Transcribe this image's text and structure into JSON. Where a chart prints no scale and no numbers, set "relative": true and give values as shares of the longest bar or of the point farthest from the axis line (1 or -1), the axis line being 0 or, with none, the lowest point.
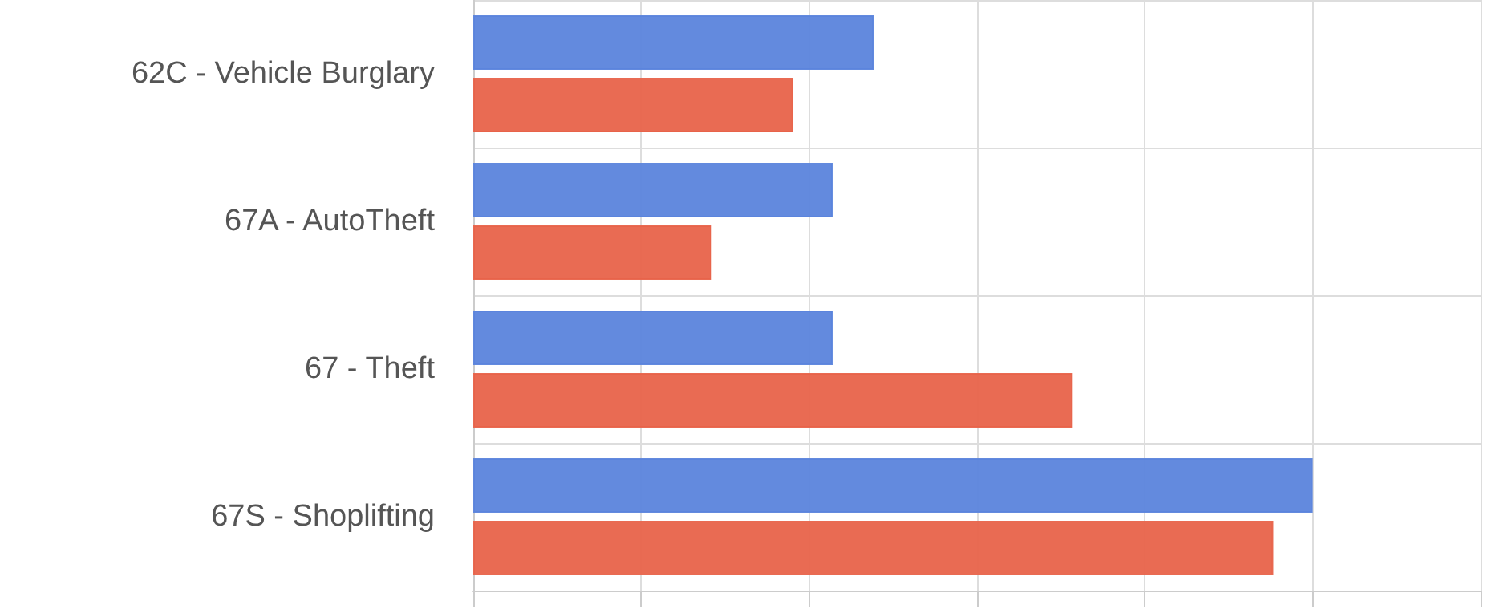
{
  "chart_data": {
    "type": "bar",
    "orientation": "horizontal",
    "relative": true,
    "grid": true,
    "categories": [
      "62C - Vehicle Burglary",
      "67A - AutoTheft",
      "67 - Theft",
      "67S - Shoplifting"
    ],
    "series": [
      {
        "color": "#5b84dc",
        "values": [
          0.477,
          0.428,
          0.428,
          1
        ]
      },
      {
        "color": "#e8634a",
        "values": [
          0.381,
          0.284,
          0.714,
          0.953
        ]
      }
    ]
  }
}
